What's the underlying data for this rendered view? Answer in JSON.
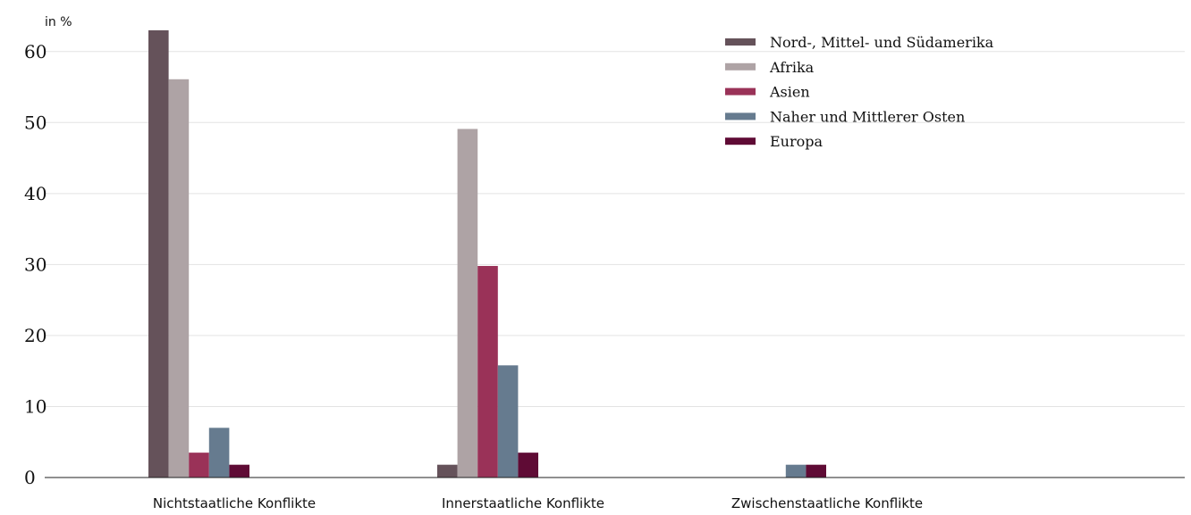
{
  "chart_data": {
    "type": "bar",
    "unit_label": "in %",
    "categories": [
      "Nichtstaatliche Konflikte",
      "Innerstaatliche Konflikte",
      "Zwischenstaatliche Konflikte"
    ],
    "series": [
      {
        "name": "Nord-, Mittel- und Südamerika",
        "color": "#65525a",
        "values": [
          63.0,
          1.8,
          0
        ]
      },
      {
        "name": "Afrika",
        "color": "#aea3a5",
        "values": [
          56.1,
          49.1,
          0
        ]
      },
      {
        "name": "Asien",
        "color": "#9a3258",
        "values": [
          3.5,
          29.8,
          0
        ]
      },
      {
        "name": "Naher und Mittlerer Osten",
        "color": "#667b8f",
        "values": [
          7.0,
          15.8,
          1.8
        ]
      },
      {
        "name": "Europa",
        "color": "#5f0b35",
        "values": [
          1.8,
          3.5,
          1.8
        ]
      }
    ],
    "yticks": [
      0,
      10,
      20,
      30,
      40,
      50,
      60
    ],
    "ylim": [
      0,
      65
    ],
    "grid": true,
    "legend": "top-right"
  }
}
